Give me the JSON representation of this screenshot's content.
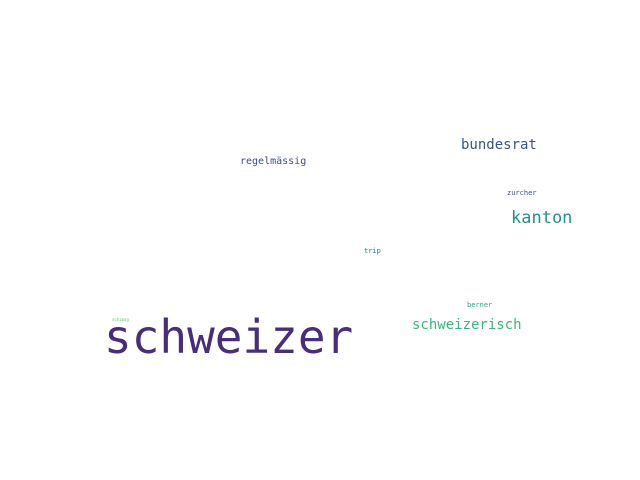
{
  "words": [
    {
      "text": "schweizer",
      "color": "#472d7b"
    },
    {
      "text": "schweizerisch",
      "color": "#35b779"
    },
    {
      "text": "bundesrat",
      "color": "#3b528b"
    },
    {
      "text": "kanton",
      "color": "#21918c"
    },
    {
      "text": "regelmässig",
      "color": "#3e4a89"
    },
    {
      "text": "zurcher",
      "color": "#3b528b"
    },
    {
      "text": "trip",
      "color": "#2c728e"
    },
    {
      "text": "berner",
      "color": "#27ad81"
    },
    {
      "text": "schimag",
      "color": "#5ec962"
    }
  ]
}
